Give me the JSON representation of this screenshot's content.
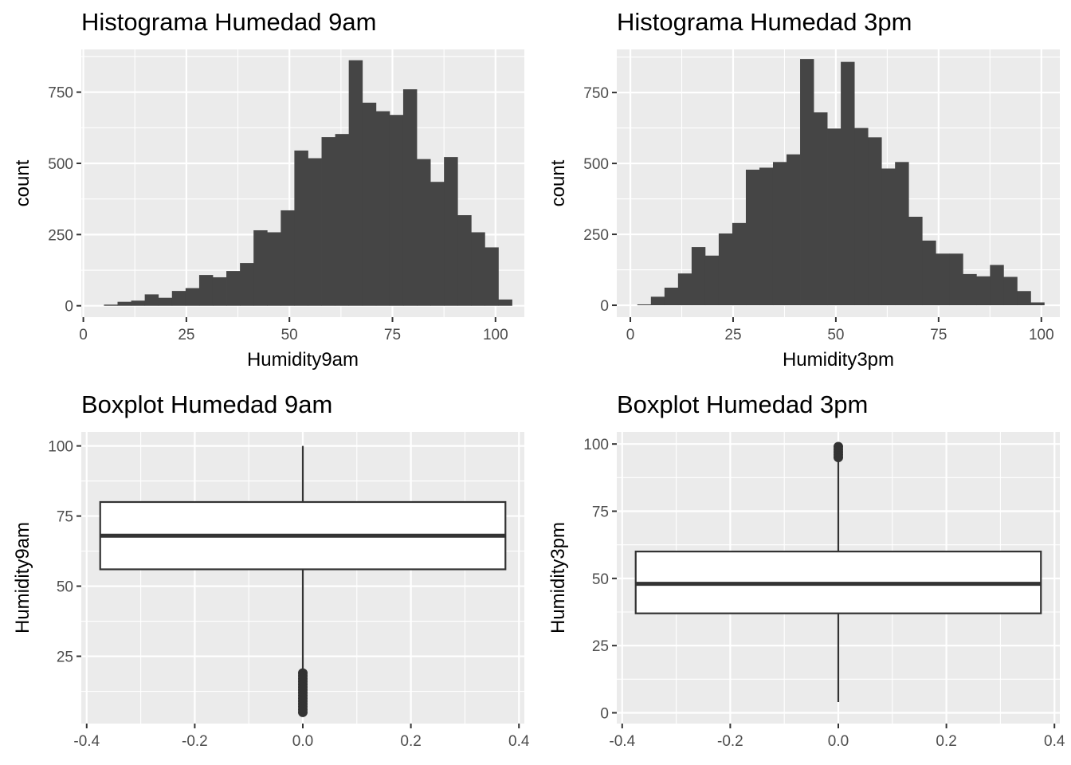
{
  "chart_data": [
    {
      "type": "bar",
      "title": "Histograma Humedad 9am",
      "xlabel": "Humidity9am",
      "ylabel": "count",
      "xlim": [
        -0.5,
        107
      ],
      "ylim": [
        -40,
        900
      ],
      "x_ticks": [
        0,
        25,
        50,
        75,
        100
      ],
      "y_ticks": [
        0,
        250,
        500,
        750
      ],
      "grid": true,
      "bins": [
        {
          "x0": 5.0,
          "x1": 8.3,
          "count": 4
        },
        {
          "x0": 8.3,
          "x1": 11.6,
          "count": 14
        },
        {
          "x0": 11.6,
          "x1": 14.9,
          "count": 18
        },
        {
          "x0": 14.9,
          "x1": 18.2,
          "count": 40
        },
        {
          "x0": 18.2,
          "x1": 21.5,
          "count": 28
        },
        {
          "x0": 21.5,
          "x1": 24.8,
          "count": 52
        },
        {
          "x0": 24.8,
          "x1": 28.1,
          "count": 62
        },
        {
          "x0": 28.1,
          "x1": 31.4,
          "count": 108
        },
        {
          "x0": 31.4,
          "x1": 34.7,
          "count": 100
        },
        {
          "x0": 34.7,
          "x1": 38.0,
          "count": 122
        },
        {
          "x0": 38.0,
          "x1": 41.3,
          "count": 150
        },
        {
          "x0": 41.3,
          "x1": 44.6,
          "count": 265
        },
        {
          "x0": 44.6,
          "x1": 47.9,
          "count": 258
        },
        {
          "x0": 47.9,
          "x1": 51.2,
          "count": 335
        },
        {
          "x0": 51.2,
          "x1": 54.5,
          "count": 545
        },
        {
          "x0": 54.5,
          "x1": 57.8,
          "count": 518
        },
        {
          "x0": 57.8,
          "x1": 61.1,
          "count": 592
        },
        {
          "x0": 61.1,
          "x1": 64.4,
          "count": 603
        },
        {
          "x0": 64.4,
          "x1": 67.7,
          "count": 862
        },
        {
          "x0": 67.7,
          "x1": 71.0,
          "count": 713
        },
        {
          "x0": 71.0,
          "x1": 74.3,
          "count": 683
        },
        {
          "x0": 74.3,
          "x1": 77.6,
          "count": 670
        },
        {
          "x0": 77.6,
          "x1": 80.9,
          "count": 760
        },
        {
          "x0": 80.9,
          "x1": 84.2,
          "count": 515
        },
        {
          "x0": 84.2,
          "x1": 87.5,
          "count": 435
        },
        {
          "x0": 87.5,
          "x1": 90.8,
          "count": 522
        },
        {
          "x0": 90.8,
          "x1": 94.1,
          "count": 318
        },
        {
          "x0": 94.1,
          "x1": 97.4,
          "count": 258
        },
        {
          "x0": 97.4,
          "x1": 100.7,
          "count": 205
        },
        {
          "x0": 100.7,
          "x1": 104.0,
          "count": 22
        }
      ]
    },
    {
      "type": "bar",
      "title": "Histograma  Humedad 3pm",
      "xlabel": "Humidity3pm",
      "ylabel": "count",
      "xlim": [
        -3.3,
        104.5
      ],
      "ylim": [
        -42,
        902
      ],
      "x_ticks": [
        0,
        25,
        50,
        75,
        100
      ],
      "y_ticks": [
        0,
        250,
        500,
        750
      ],
      "grid": true,
      "bins": [
        {
          "x0": 1.7,
          "x1": 5.0,
          "count": 3
        },
        {
          "x0": 5.0,
          "x1": 8.3,
          "count": 30
        },
        {
          "x0": 8.3,
          "x1": 11.6,
          "count": 62
        },
        {
          "x0": 11.6,
          "x1": 14.9,
          "count": 112
        },
        {
          "x0": 14.9,
          "x1": 18.2,
          "count": 205
        },
        {
          "x0": 18.2,
          "x1": 21.5,
          "count": 175
        },
        {
          "x0": 21.5,
          "x1": 24.8,
          "count": 253
        },
        {
          "x0": 24.8,
          "x1": 28.1,
          "count": 290
        },
        {
          "x0": 28.1,
          "x1": 31.4,
          "count": 478
        },
        {
          "x0": 31.4,
          "x1": 34.7,
          "count": 485
        },
        {
          "x0": 34.7,
          "x1": 38.0,
          "count": 505
        },
        {
          "x0": 38.0,
          "x1": 41.3,
          "count": 532
        },
        {
          "x0": 41.3,
          "x1": 44.6,
          "count": 868
        },
        {
          "x0": 44.6,
          "x1": 47.9,
          "count": 680
        },
        {
          "x0": 47.9,
          "x1": 51.2,
          "count": 623
        },
        {
          "x0": 51.2,
          "x1": 54.5,
          "count": 858
        },
        {
          "x0": 54.5,
          "x1": 57.8,
          "count": 625
        },
        {
          "x0": 57.8,
          "x1": 61.1,
          "count": 592
        },
        {
          "x0": 61.1,
          "x1": 64.4,
          "count": 482
        },
        {
          "x0": 64.4,
          "x1": 67.7,
          "count": 505
        },
        {
          "x0": 67.7,
          "x1": 71.0,
          "count": 312
        },
        {
          "x0": 71.0,
          "x1": 74.3,
          "count": 228
        },
        {
          "x0": 74.3,
          "x1": 77.6,
          "count": 182
        },
        {
          "x0": 77.6,
          "x1": 80.9,
          "count": 182
        },
        {
          "x0": 80.9,
          "x1": 84.2,
          "count": 110
        },
        {
          "x0": 84.2,
          "x1": 87.5,
          "count": 102
        },
        {
          "x0": 87.5,
          "x1": 90.8,
          "count": 142
        },
        {
          "x0": 90.8,
          "x1": 94.1,
          "count": 100
        },
        {
          "x0": 94.1,
          "x1": 97.4,
          "count": 50
        },
        {
          "x0": 97.4,
          "x1": 100.7,
          "count": 10
        }
      ]
    },
    {
      "type": "boxplot",
      "title": "Boxplot Humedad 9am",
      "xlabel": "",
      "ylabel": "Humidity9am",
      "xlim": [
        -0.41,
        0.41
      ],
      "ylim": [
        1,
        105
      ],
      "x_ticks": [
        -0.4,
        -0.2,
        0.0,
        0.2,
        0.4
      ],
      "x_tick_labels": [
        "-0.4",
        "-0.2",
        "0.0",
        "0.2",
        "0.4"
      ],
      "y_ticks": [
        25,
        50,
        75,
        100
      ],
      "grid": true,
      "box": {
        "x": 0,
        "half_width": 0.375,
        "whisker_low": 20,
        "q1": 56,
        "median": 68,
        "q3": 80,
        "whisker_high": 100
      },
      "outliers": [
        19,
        18,
        17,
        16,
        15,
        14,
        13,
        12,
        11,
        10,
        9,
        8,
        7,
        6,
        5
      ]
    },
    {
      "type": "boxplot",
      "title": "Boxplot Humedad 3pm",
      "xlabel": "",
      "ylabel": "Humidity3pm",
      "xlim": [
        -0.41,
        0.41
      ],
      "ylim": [
        -4,
        104.5
      ],
      "x_ticks": [
        -0.4,
        -0.2,
        0.0,
        0.2,
        0.4
      ],
      "x_tick_labels": [
        "-0.4",
        "-0.2",
        "0.0",
        "0.2",
        "0.4"
      ],
      "y_ticks": [
        0,
        25,
        50,
        75,
        100
      ],
      "grid": true,
      "box": {
        "x": 0,
        "half_width": 0.375,
        "whisker_low": 4,
        "q1": 37,
        "median": 48,
        "q3": 60,
        "whisker_high": 94
      },
      "outliers": [
        95,
        96,
        97,
        98,
        99
      ]
    }
  ]
}
